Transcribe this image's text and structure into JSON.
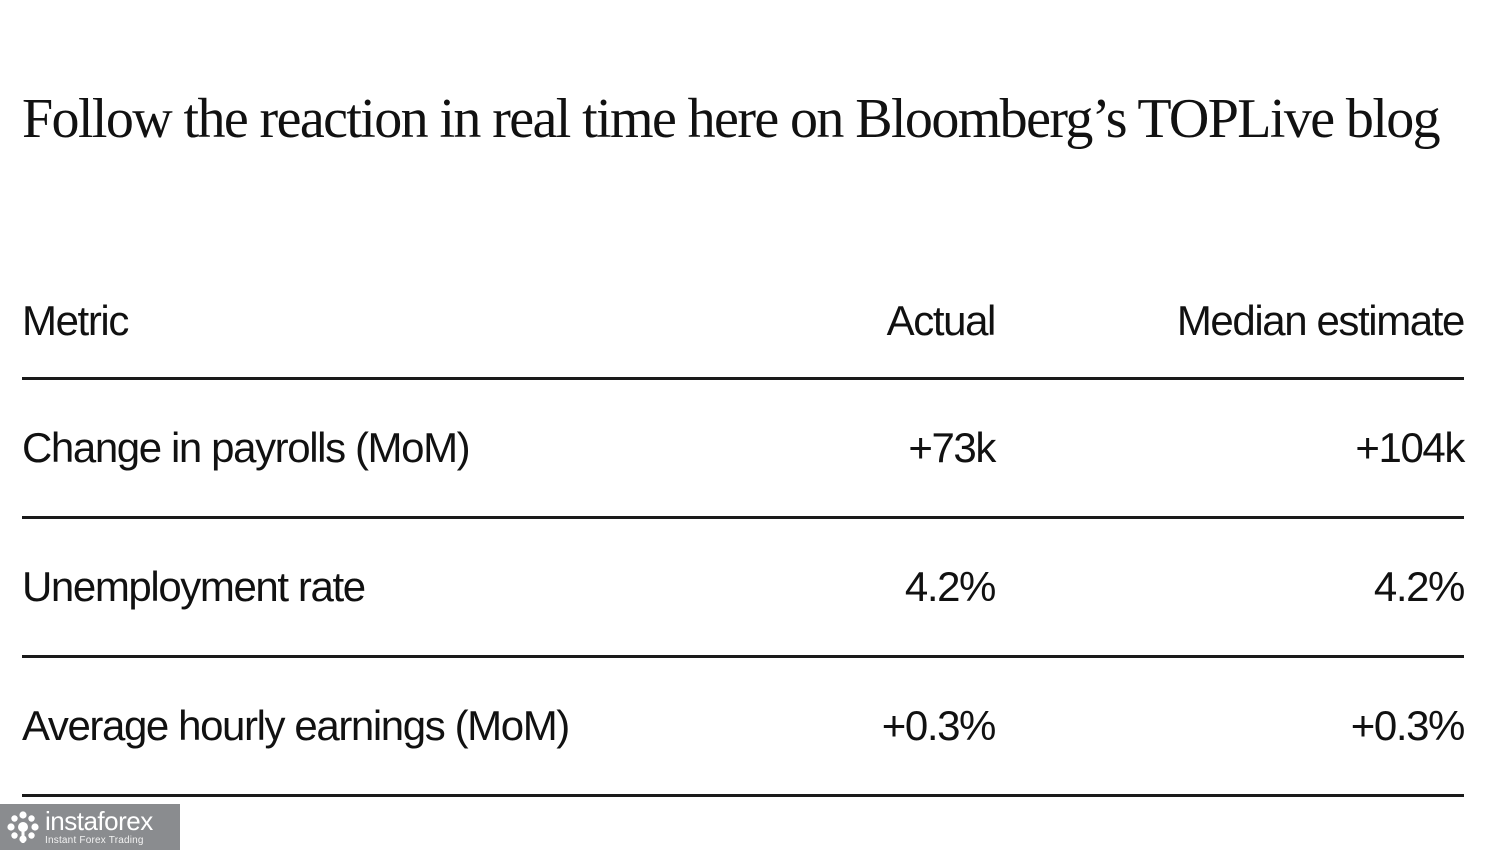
{
  "headline": "Follow the reaction in real time here on Bloomberg’s TOPLive blog",
  "table": {
    "headers": {
      "metric": "Metric",
      "actual": "Actual",
      "median": "Median estimate"
    },
    "rows": [
      {
        "metric": "Change in payrolls (MoM)",
        "actual": "+73k",
        "median": "+104k"
      },
      {
        "metric": "Unemployment rate",
        "actual": "4.2%",
        "median": "4.2%"
      },
      {
        "metric": "Average hourly earnings (MoM)",
        "actual": "+0.3%",
        "median": "+0.3%"
      }
    ]
  },
  "watermark": {
    "brand": "instaforex",
    "tagline": "Instant Forex Trading",
    "icon": "instaforex-logo-icon",
    "background": "#8a8c8f"
  }
}
